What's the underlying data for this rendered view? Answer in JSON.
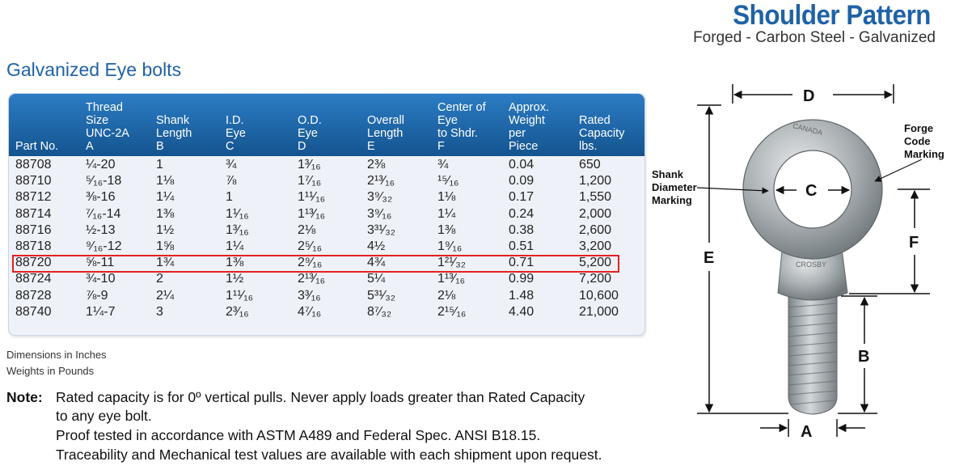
{
  "header": {
    "title": "Shoulder Pattern",
    "subtitle": "Forged - Carbon Steel - Galvanized"
  },
  "section_heading": "Galvanized Eye bolts",
  "table": {
    "columns": [
      "Part No.",
      "Thread\nSize\nUNC-2A\nA",
      "Shank\nLength\nB",
      "I.D.\nEye\nC",
      "O.D.\nEye\nD",
      "Overall\nLength\nE",
      "Center of\nEye\nto Shdr.\nF",
      "Approx.\nWeight\nper\nPiece",
      "Rated\nCapacity\nlbs."
    ],
    "rows": [
      [
        "88708",
        "¼-20",
        "1",
        "¾",
        "1³⁄₁₆",
        "2⅜",
        "¾",
        "0.04",
        "650"
      ],
      [
        "88710",
        "⁵⁄₁₆-18",
        "1⅛",
        "⅞",
        "1⁷⁄₁₆",
        "2¹³⁄₁₆",
        "¹⁵⁄₁₆",
        "0.09",
        "1,200"
      ],
      [
        "88712",
        "⅜-16",
        "1¼",
        "1",
        "1¹¹⁄₁₆",
        "3⁹⁄₃₂",
        "1⅛",
        "0.17",
        "1,550"
      ],
      [
        "88714",
        "⁷⁄₁₆-14",
        "1⅜",
        "1¹⁄₁₆",
        "1¹³⁄₁₆",
        "3⁹⁄₁₆",
        "1¼",
        "0.24",
        "2,000"
      ],
      [
        "88716",
        "½-13",
        "1½",
        "1³⁄₁₆",
        "2⅛",
        "3³¹⁄₃₂",
        "1⅜",
        "0.38",
        "2,600"
      ],
      [
        "88718",
        "⁹⁄₁₆-12",
        "1⅝",
        "1¼",
        "2⁵⁄₁₆",
        "4½",
        "1⁹⁄₁₆",
        "0.51",
        "3,200"
      ],
      [
        "88720",
        "⅝-11",
        "1¾",
        "1⅜",
        "2⁹⁄₁₆",
        "4¾",
        "1²¹⁄₃₂",
        "0.71",
        "5,200"
      ],
      [
        "88724",
        "¾-10",
        "2",
        "1½",
        "2¹³⁄₁₆",
        "5¼",
        "1¹³⁄₁₆",
        "0.99",
        "7,200"
      ],
      [
        "88728",
        "⅞-9",
        "2¼",
        "1¹¹⁄₁₆",
        "3³⁄₁₆",
        "5³¹⁄₃₂",
        "2⅛",
        "1.48",
        "10,600"
      ],
      [
        "88740",
        "1¼-7",
        "3",
        "2³⁄₁₆",
        "4⁷⁄₁₆",
        "8⁷⁄₃₂",
        "2¹⁵⁄₁₆",
        "4.40",
        "21,000"
      ]
    ],
    "highlighted_row_index": 6
  },
  "footnotes": [
    "Dimensions in Inches",
    "Weights in Pounds"
  ],
  "note": {
    "label": "Note:",
    "lines": [
      "Rated capacity is for 0º vertical pulls. Never apply loads greater than Rated Capacity",
      "to any eye bolt.",
      "Proof tested in accordance with ASTM A489 and Federal Spec. ANSI B18.15.",
      "Traceability and Mechanical test values are available with each shipment upon request."
    ]
  },
  "diagram": {
    "labels": {
      "d": "D",
      "c": "C",
      "e": "E",
      "f": "F",
      "b": "B",
      "a": "A",
      "shank_marking": "Shank\nDiameter\nMarking",
      "forge_marking": "Forge\nCode\nMarking",
      "eye_stamp": "CANADA",
      "shank_stamp": "CROSBY"
    },
    "colors": {
      "accent": "#1f62a8",
      "highlight": "#e52020",
      "header": "#1a66aa"
    }
  }
}
